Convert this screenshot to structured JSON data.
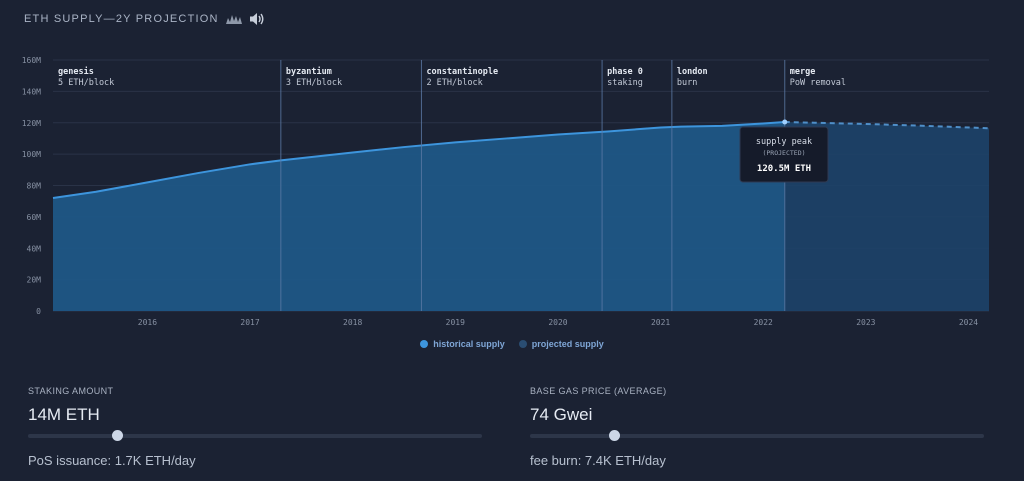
{
  "header": {
    "title": "ETH SUPPLY—2Y PROJECTION",
    "icons": [
      "chart-wave-icon",
      "speaker-icon"
    ]
  },
  "chart_data": {
    "type": "area",
    "ylim": [
      0,
      160
    ],
    "y_ticks": [
      0,
      20,
      40,
      60,
      80,
      100,
      120,
      140,
      160
    ],
    "y_tick_labels": [
      "0",
      "20M",
      "40M",
      "60M",
      "80M",
      "100M",
      "120M",
      "140M",
      "160M"
    ],
    "xlim": [
      2015.58,
      2024.7
    ],
    "x_ticks": [
      2016,
      2017,
      2018,
      2019,
      2020,
      2021,
      2022,
      2023,
      2024
    ],
    "x_tick_labels": [
      "2016",
      "2017",
      "2018",
      "2019",
      "2020",
      "2021",
      "2022",
      "2023",
      "2024"
    ],
    "grid": true,
    "legend_position": "bottom-center",
    "series": [
      {
        "name": "historical supply",
        "color": "#3d95dd",
        "x": [
          2015.58,
          2016.0,
          2016.5,
          2017.0,
          2017.5,
          2017.8,
          2018.5,
          2019.0,
          2019.5,
          2020.0,
          2020.5,
          2021.0,
          2021.5,
          2021.7,
          2022.1,
          2022.5,
          2022.71
        ],
        "y": [
          72,
          76,
          82,
          88,
          93.5,
          96,
          101,
          104.5,
          107.5,
          110,
          112.5,
          114.5,
          117,
          117.5,
          118,
          119.5,
          120.5
        ]
      },
      {
        "name": "projected supply",
        "color": "#2a4d72",
        "x": [
          2022.71,
          2023.0,
          2023.5,
          2024.0,
          2024.7
        ],
        "y": [
          120.5,
          120,
          119.2,
          118.2,
          116.5
        ]
      }
    ],
    "events": [
      {
        "x": 2015.58,
        "name": "genesis",
        "detail": "5 ETH/block"
      },
      {
        "x": 2017.8,
        "name": "byzantium",
        "detail": "3 ETH/block"
      },
      {
        "x": 2019.17,
        "name": "constantinople",
        "detail": "2 ETH/block"
      },
      {
        "x": 2020.93,
        "name": "phase 0",
        "detail": "staking"
      },
      {
        "x": 2021.61,
        "name": "london",
        "detail": "burn"
      },
      {
        "x": 2022.71,
        "name": "merge",
        "detail": "PoW removal"
      }
    ],
    "annotation": {
      "x": 2022.71,
      "y": 120.5,
      "line1": "supply peak",
      "line2": "(PROJECTED)",
      "line3": "120.5M ETH"
    }
  },
  "controls": {
    "staking": {
      "label": "STAKING AMOUNT",
      "value": "14M ETH",
      "slider_fraction": 0.195,
      "sub": "PoS issuance: 1.7K ETH/day"
    },
    "gas": {
      "label": "BASE GAS PRICE (AVERAGE)",
      "value": "74 Gwei",
      "slider_fraction": 0.184,
      "sub": "fee burn: 7.4K ETH/day"
    }
  }
}
